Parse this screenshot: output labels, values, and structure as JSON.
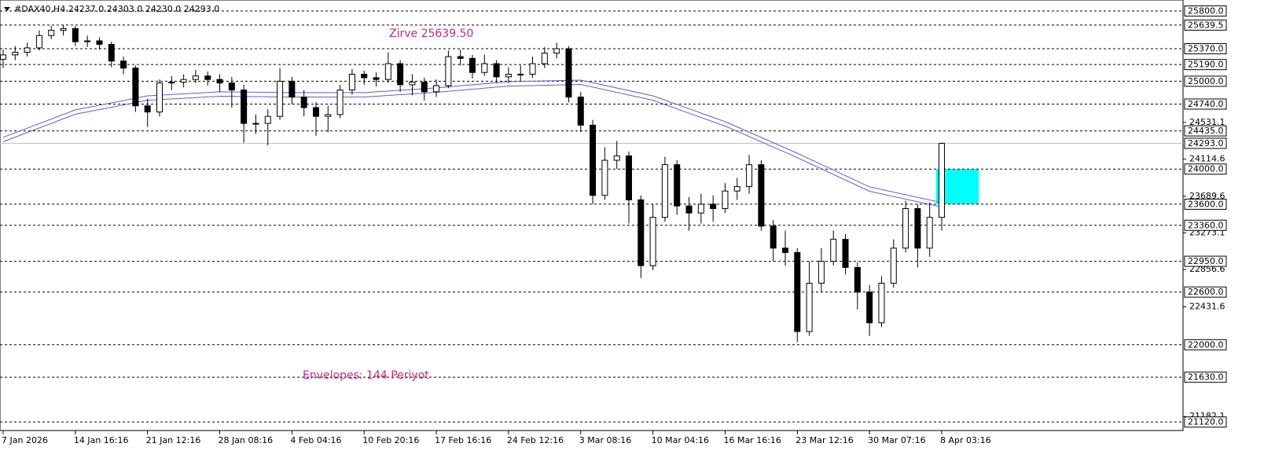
{
  "chart_data": {
    "type": "candlestick",
    "header": "#DAX40,H4  24237.0 24303.0 24230.0 24293.0",
    "ylim": [
      21050,
      25925
    ],
    "yticks": [
      24531.1,
      24114.6,
      23689.6,
      23273.1,
      22856.6,
      22431.6,
      21182.1
    ],
    "levels": [
      {
        "value": 25800,
        "label": "25800.0"
      },
      {
        "value": 25639.5,
        "label": "25639.5"
      },
      {
        "value": 25370,
        "label": "25370.0"
      },
      {
        "value": 25190,
        "label": "25190.0"
      },
      {
        "value": 25000,
        "label": "25000.0"
      },
      {
        "value": 24740,
        "label": "24740.0"
      },
      {
        "value": 24435,
        "label": "24435.0"
      },
      {
        "value": 24000,
        "label": "24000.0"
      },
      {
        "value": 23600,
        "label": "23600.0"
      },
      {
        "value": 23360,
        "label": "23360.0"
      },
      {
        "value": 22950,
        "label": "22950.0"
      },
      {
        "value": 22600,
        "label": "22600.0"
      },
      {
        "value": 22000,
        "label": "22000.0"
      },
      {
        "value": 21630,
        "label": "21630.0"
      },
      {
        "value": 21120,
        "label": "21120.0"
      }
    ],
    "current_price": {
      "value": 24293,
      "label": "24293.0"
    },
    "zone": [
      23600,
      24000
    ],
    "zone_color": "#00ffff",
    "annotations": [
      {
        "text": "Zirve 25639.50",
        "color": "#c8287f"
      },
      {
        "text": "Envelopes: 144 Periyot",
        "color": "#c8287f"
      }
    ],
    "envelope": {
      "color": "#6a5acd",
      "upper": [
        24361,
        24674,
        24834,
        24879,
        24870,
        24870,
        24924,
        24995,
        25013,
        24834,
        24539,
        24181,
        23797,
        23618
      ],
      "lower": [
        24311,
        24624,
        24784,
        24829,
        24820,
        24820,
        24874,
        24945,
        24963,
        24784,
        24489,
        24131,
        23747,
        23568
      ]
    },
    "categories": [
      "7 Jan 2026",
      null,
      null,
      null,
      null,
      null,
      "14 Jan 16:16",
      null,
      null,
      null,
      null,
      null,
      "21 Jan 12:16",
      null,
      null,
      null,
      null,
      null,
      "28 Jan 08:16",
      null,
      null,
      null,
      null,
      null,
      "4 Feb 04:16",
      null,
      null,
      null,
      null,
      null,
      "10 Feb 20:16",
      null,
      null,
      null,
      null,
      null,
      "17 Feb 16:16",
      null,
      null,
      null,
      null,
      null,
      "24 Feb 12:16",
      null,
      null,
      null,
      null,
      null,
      "3 Mar 08:16",
      null,
      null,
      null,
      null,
      null,
      "10 Mar 04:16",
      null,
      null,
      null,
      null,
      null,
      "16 Mar 16:16",
      null,
      null,
      null,
      null,
      null,
      "23 Mar 12:16",
      null,
      null,
      null,
      null,
      null,
      "30 Mar 07:16",
      null,
      null,
      null,
      null,
      null,
      "8 Apr 03:16"
    ],
    "open": [
      25250,
      25300,
      25330,
      25380,
      25520,
      25580,
      25600,
      25450,
      25460,
      25420,
      25230,
      25150,
      24720,
      24650,
      24980,
      24990,
      25020,
      25060,
      25020,
      24980,
      24900,
      24520,
      24520,
      24600,
      25000,
      24820,
      24700,
      24600,
      24620,
      24900,
      25080,
      25040,
      25020,
      25200,
      24960,
      24990,
      24880,
      24950,
      25280,
      25260,
      25100,
      25200,
      25050,
      25080,
      25080,
      25200,
      25320,
      25370,
      24820,
      24500,
      23700,
      24100,
      24150,
      23650,
      22900,
      23450,
      24050,
      23580,
      23500,
      23600,
      23550,
      23750,
      23800,
      24050,
      23350,
      23100,
      23050,
      22150,
      22700,
      22950,
      23200,
      22880,
      22600,
      22250,
      22700,
      23100,
      23550,
      23100,
      23450
    ],
    "high": [
      25360,
      25400,
      25440,
      25580,
      25630,
      25639.5,
      25630,
      25520,
      25500,
      25450,
      25280,
      25180,
      24800,
      25020,
      25060,
      25080,
      25130,
      25110,
      25080,
      25050,
      24960,
      24620,
      24680,
      25150,
      25050,
      24900,
      24760,
      24720,
      24960,
      25140,
      25120,
      25100,
      25330,
      25240,
      25080,
      25040,
      25020,
      25350,
      25360,
      25300,
      25300,
      25240,
      25160,
      25180,
      25280,
      25390,
      25440,
      25400,
      24880,
      24560,
      24250,
      24320,
      24200,
      23700,
      23600,
      24140,
      24100,
      23680,
      23720,
      23700,
      23840,
      23900,
      24160,
      24100,
      23420,
      23300,
      23100,
      22950,
      23100,
      23300,
      23260,
      22940,
      22680,
      22780,
      23200,
      23640,
      23600,
      23620,
      24303
    ],
    "low": [
      25150,
      25240,
      25280,
      25350,
      25480,
      25520,
      25400,
      25390,
      25360,
      25160,
      25080,
      24650,
      24480,
      24600,
      24900,
      24930,
      24980,
      24950,
      24880,
      24700,
      24300,
      24400,
      24270,
      24560,
      24740,
      24600,
      24380,
      24420,
      24580,
      24850,
      24960,
      24940,
      24980,
      24880,
      24840,
      24780,
      24820,
      24920,
      25180,
      25030,
      25060,
      24980,
      24980,
      25000,
      25040,
      25150,
      25260,
      24760,
      24420,
      23600,
      23650,
      24000,
      23380,
      22760,
      22850,
      23400,
      23480,
      23300,
      23380,
      23400,
      23500,
      23650,
      23720,
      23300,
      22950,
      22900,
      22030,
      22100,
      22600,
      22900,
      22800,
      22400,
      22100,
      22200,
      22650,
      23050,
      22880,
      23000,
      23300
    ],
    "close": [
      25300,
      25330,
      25380,
      25520,
      25580,
      25600,
      25450,
      25460,
      25420,
      25230,
      25150,
      24720,
      24650,
      24980,
      24990,
      25020,
      25060,
      25020,
      24980,
      24900,
      24520,
      24520,
      24600,
      25000,
      24820,
      24700,
      24600,
      24620,
      24900,
      25080,
      25040,
      25020,
      25200,
      24960,
      24990,
      24880,
      24950,
      25280,
      25260,
      25100,
      25200,
      25050,
      25080,
      25080,
      25200,
      25320,
      25370,
      24820,
      24500,
      23700,
      24100,
      24150,
      23650,
      22900,
      23450,
      24050,
      23580,
      23500,
      23600,
      23550,
      23750,
      23800,
      24050,
      23350,
      23100,
      23050,
      22150,
      22700,
      22950,
      23200,
      22880,
      22600,
      22250,
      22700,
      23100,
      23550,
      23100,
      23450,
      24293
    ]
  }
}
